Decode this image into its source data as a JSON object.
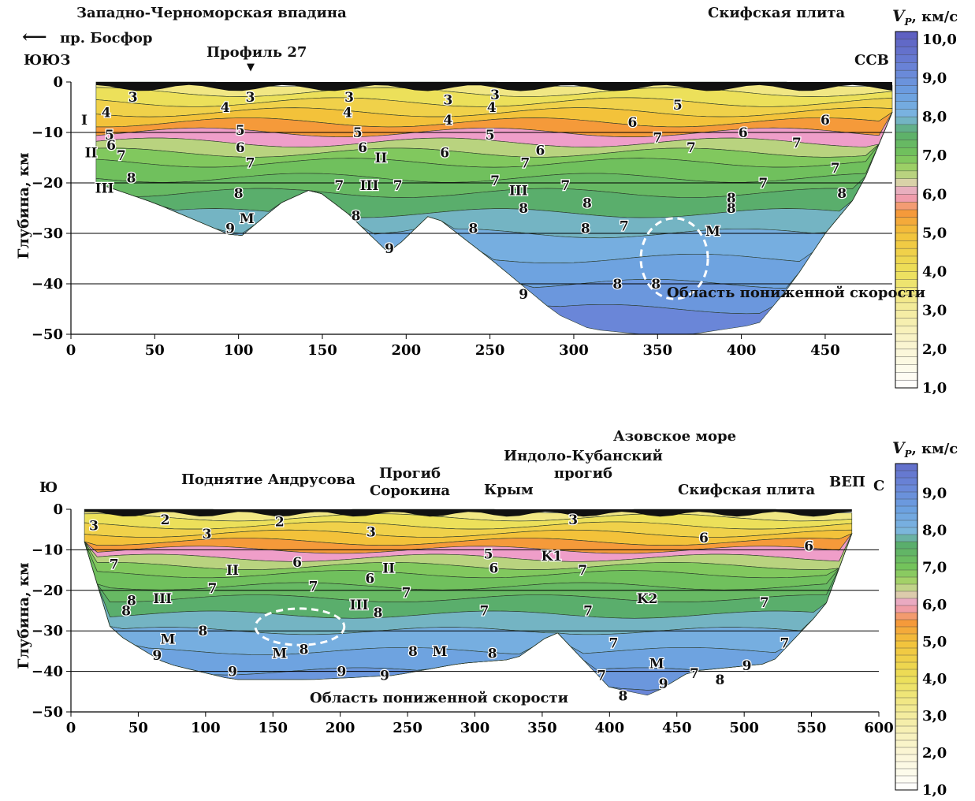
{
  "chart_data": [
    {
      "type": "heatmap",
      "region_labels": [
        "Западно-Черноморская впадина",
        "Скифская плита"
      ],
      "direction_arrow": "пр. Босфор",
      "profile_marker": "Профиль 27",
      "direction_left": "ЮЮЗ",
      "direction_right": "ССВ",
      "ylabel": "Глубина, км",
      "xlim": [
        0,
        490
      ],
      "ylim": [
        -50,
        0
      ],
      "xticks": [
        "0",
        "50",
        "100",
        "150",
        "200",
        "250",
        "300",
        "350",
        "400",
        "450"
      ],
      "yticks": [
        "0",
        "−10",
        "−20",
        "−30",
        "−40",
        "−50"
      ],
      "gridlines_y": [
        -10,
        -20,
        -30,
        -40
      ],
      "annotation": "Область пониженной скорости",
      "colorbar": {
        "title": "Vp, км/с",
        "range": [
          1.0,
          10.2
        ],
        "labels": [
          "10,0",
          "9,0",
          "8,0",
          "7,0",
          "6,0",
          "5,0",
          "4,0",
          "3,0",
          "2,0",
          "1,0"
        ]
      },
      "layer_labels": [
        {
          "t": "3",
          "x": 37,
          "y": -3
        },
        {
          "t": "3",
          "x": 107,
          "y": -3
        },
        {
          "t": "3",
          "x": 166,
          "y": -3
        },
        {
          "t": "3",
          "x": 225,
          "y": -3.5
        },
        {
          "t": "4",
          "x": 21,
          "y": -6
        },
        {
          "t": "4",
          "x": 92,
          "y": -5
        },
        {
          "t": "4",
          "x": 165,
          "y": -6
        },
        {
          "t": "4",
          "x": 225,
          "y": -7.5
        },
        {
          "t": "4",
          "x": 251,
          "y": -5
        },
        {
          "t": "3",
          "x": 253,
          "y": -2.5
        },
        {
          "t": "5",
          "x": 362,
          "y": -4.5
        },
        {
          "t": "I",
          "x": 8,
          "y": -7.5
        },
        {
          "t": "5",
          "x": 23,
          "y": -10.5
        },
        {
          "t": "6",
          "x": 24,
          "y": -12.5
        },
        {
          "t": "7",
          "x": 30,
          "y": -14.5
        },
        {
          "t": "5",
          "x": 101,
          "y": -9.5
        },
        {
          "t": "6",
          "x": 101,
          "y": -13
        },
        {
          "t": "7",
          "x": 107,
          "y": -16
        },
        {
          "t": "II",
          "x": 12,
          "y": -14
        },
        {
          "t": "5",
          "x": 171,
          "y": -10
        },
        {
          "t": "6",
          "x": 174,
          "y": -13
        },
        {
          "t": "II",
          "x": 185,
          "y": -15
        },
        {
          "t": "5",
          "x": 250,
          "y": -10.5
        },
        {
          "t": "6",
          "x": 223,
          "y": -14
        },
        {
          "t": "6",
          "x": 280,
          "y": -13.5
        },
        {
          "t": "7",
          "x": 271,
          "y": -16
        },
        {
          "t": "6",
          "x": 335,
          "y": -8
        },
        {
          "t": "6",
          "x": 401,
          "y": -10
        },
        {
          "t": "6",
          "x": 450,
          "y": -7.5
        },
        {
          "t": "7",
          "x": 350,
          "y": -11
        },
        {
          "t": "7",
          "x": 370,
          "y": -13
        },
        {
          "t": "7",
          "x": 433,
          "y": -12
        },
        {
          "t": "7",
          "x": 456,
          "y": -17
        },
        {
          "t": "III",
          "x": 20,
          "y": -21
        },
        {
          "t": "8",
          "x": 36,
          "y": -19
        },
        {
          "t": "8",
          "x": 100,
          "y": -22
        },
        {
          "t": "7",
          "x": 160,
          "y": -20.5
        },
        {
          "t": "III",
          "x": 178,
          "y": -20.5
        },
        {
          "t": "7",
          "x": 195,
          "y": -20.5
        },
        {
          "t": "7",
          "x": 253,
          "y": -19.5
        },
        {
          "t": "III",
          "x": 267,
          "y": -21.5
        },
        {
          "t": "7",
          "x": 295,
          "y": -20.5
        },
        {
          "t": "8",
          "x": 270,
          "y": -25
        },
        {
          "t": "8",
          "x": 308,
          "y": -24
        },
        {
          "t": "7",
          "x": 413,
          "y": -20
        },
        {
          "t": "8",
          "x": 394,
          "y": -23
        },
        {
          "t": "8",
          "x": 394,
          "y": -25
        },
        {
          "t": "8",
          "x": 460,
          "y": -22
        },
        {
          "t": "M",
          "x": 105,
          "y": -27
        },
        {
          "t": "9",
          "x": 95,
          "y": -29
        },
        {
          "t": "8",
          "x": 170,
          "y": -26.5
        },
        {
          "t": "9",
          "x": 190,
          "y": -33
        },
        {
          "t": "8",
          "x": 240,
          "y": -29
        },
        {
          "t": "8",
          "x": 307,
          "y": -29
        },
        {
          "t": "7",
          "x": 330,
          "y": -28.5
        },
        {
          "t": "M",
          "x": 383,
          "y": -29.5
        },
        {
          "t": "8",
          "x": 326,
          "y": -40
        },
        {
          "t": "8",
          "x": 349,
          "y": -40
        },
        {
          "t": "9",
          "x": 270,
          "y": -42
        }
      ]
    },
    {
      "type": "heatmap",
      "region_labels": [
        "Поднятие Андрусова",
        "Прогиб\nСорокина",
        "Крым",
        "Индоло-Кубанский\nпрогиб",
        "Азовское море",
        "Скифская плита",
        "ВЕП"
      ],
      "direction_left": "Ю",
      "direction_right": "С",
      "ylabel": "Глубина, км",
      "xlim": [
        0,
        600
      ],
      "ylim": [
        -50,
        0
      ],
      "xticks": [
        "0",
        "50",
        "100",
        "150",
        "200",
        "250",
        "300",
        "350",
        "400",
        "450",
        "500",
        "550",
        "600"
      ],
      "yticks": [
        "0",
        "−10",
        "−20",
        "−30",
        "−40",
        "−50"
      ],
      "gridlines_y": [
        -10,
        -20,
        -30,
        -40
      ],
      "annotation": "Область пониженной скорости",
      "colorbar": {
        "title": "Vp, км/с",
        "range": [
          1.0,
          9.8
        ],
        "labels": [
          "9,0",
          "8,0",
          "7,0",
          "6,0",
          "5,0",
          "4,0",
          "3,0",
          "2,0",
          "1,0"
        ]
      },
      "layer_labels": [
        {
          "t": "3",
          "x": 17,
          "y": -4
        },
        {
          "t": "2",
          "x": 70,
          "y": -2.5
        },
        {
          "t": "3",
          "x": 101,
          "y": -6
        },
        {
          "t": "2",
          "x": 155,
          "y": -3
        },
        {
          "t": "3",
          "x": 223,
          "y": -5.5
        },
        {
          "t": "3",
          "x": 373,
          "y": -2.5
        },
        {
          "t": "6",
          "x": 470,
          "y": -7
        },
        {
          "t": "6",
          "x": 548,
          "y": -9
        },
        {
          "t": "7",
          "x": 32,
          "y": -13.5
        },
        {
          "t": "6",
          "x": 168,
          "y": -13
        },
        {
          "t": "II",
          "x": 120,
          "y": -15
        },
        {
          "t": "II",
          "x": 236,
          "y": -14.5
        },
        {
          "t": "5",
          "x": 310,
          "y": -11
        },
        {
          "t": "6",
          "x": 314,
          "y": -14.5
        },
        {
          "t": "K1",
          "x": 357,
          "y": -11.5
        },
        {
          "t": "7",
          "x": 380,
          "y": -15
        },
        {
          "t": "7",
          "x": 105,
          "y": -19.5
        },
        {
          "t": "7",
          "x": 180,
          "y": -19
        },
        {
          "t": "6",
          "x": 222,
          "y": -17
        },
        {
          "t": "7",
          "x": 249,
          "y": -20.5
        },
        {
          "t": "K2",
          "x": 428,
          "y": -22
        },
        {
          "t": "7",
          "x": 515,
          "y": -23
        },
        {
          "t": "7",
          "x": 384,
          "y": -25
        },
        {
          "t": "8",
          "x": 45,
          "y": -22.5
        },
        {
          "t": "8",
          "x": 41,
          "y": -25
        },
        {
          "t": "III",
          "x": 68,
          "y": -22
        },
        {
          "t": "III",
          "x": 214,
          "y": -23.5
        },
        {
          "t": "8",
          "x": 228,
          "y": -25.5
        },
        {
          "t": "7",
          "x": 307,
          "y": -25
        },
        {
          "t": "8",
          "x": 98,
          "y": -30
        },
        {
          "t": "7",
          "x": 403,
          "y": -33
        },
        {
          "t": "7",
          "x": 530,
          "y": -33
        },
        {
          "t": "M",
          "x": 72,
          "y": -32
        },
        {
          "t": "9",
          "x": 64,
          "y": -36
        },
        {
          "t": "M",
          "x": 155,
          "y": -35.5
        },
        {
          "t": "8",
          "x": 173,
          "y": -34.5
        },
        {
          "t": "8",
          "x": 254,
          "y": -35
        },
        {
          "t": "M",
          "x": 274,
          "y": -35
        },
        {
          "t": "8",
          "x": 313,
          "y": -35.5
        },
        {
          "t": "M",
          "x": 435,
          "y": -38
        },
        {
          "t": "9",
          "x": 502,
          "y": -38.5
        },
        {
          "t": "9",
          "x": 120,
          "y": -40
        },
        {
          "t": "9",
          "x": 201,
          "y": -40
        },
        {
          "t": "9",
          "x": 233,
          "y": -41
        },
        {
          "t": "7",
          "x": 394,
          "y": -41
        },
        {
          "t": "7",
          "x": 463,
          "y": -40.5
        },
        {
          "t": "8",
          "x": 482,
          "y": -42
        },
        {
          "t": "9",
          "x": 440,
          "y": -43
        },
        {
          "t": "8",
          "x": 410,
          "y": -46
        }
      ]
    }
  ]
}
